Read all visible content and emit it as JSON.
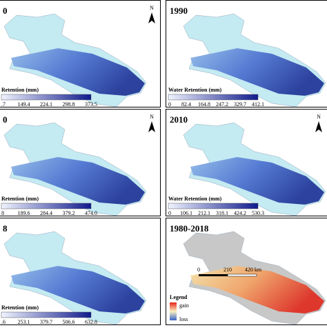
{
  "panels": [
    {
      "label": "0",
      "legend_title": "Retention (mm)",
      "ticks": [
        ".7",
        "149.4",
        "224.1",
        "298.8",
        "373.5"
      ],
      "north": "N"
    },
    {
      "label": "1990",
      "legend_title": "Water Retention (mm)",
      "ticks": [
        "0",
        "82.4",
        "164.8",
        "247.2",
        "329.7",
        "412.1"
      ]
    },
    {
      "label": "0",
      "legend_title": "Retention (mm)",
      "ticks": [
        "8",
        "189.6",
        "284.4",
        "379.2",
        "474.0"
      ],
      "north": "N"
    },
    {
      "label": "2010",
      "legend_title": "Water Retention (mm)",
      "ticks": [
        "0",
        "106.1",
        "212.1",
        "318.1",
        "424.2",
        "530.3"
      ],
      "north": "N"
    },
    {
      "label": "8",
      "legend_title": "Retention (mm)",
      "ticks": [
        ".6",
        "253.1",
        "379.7",
        "506.6",
        "632.8"
      ]
    },
    {
      "label": "1980-2018",
      "legend": {
        "title": "Legend",
        "gain": "gain",
        "loss": "loss"
      },
      "scale": [
        "0",
        "210",
        "420 km"
      ]
    }
  ]
}
